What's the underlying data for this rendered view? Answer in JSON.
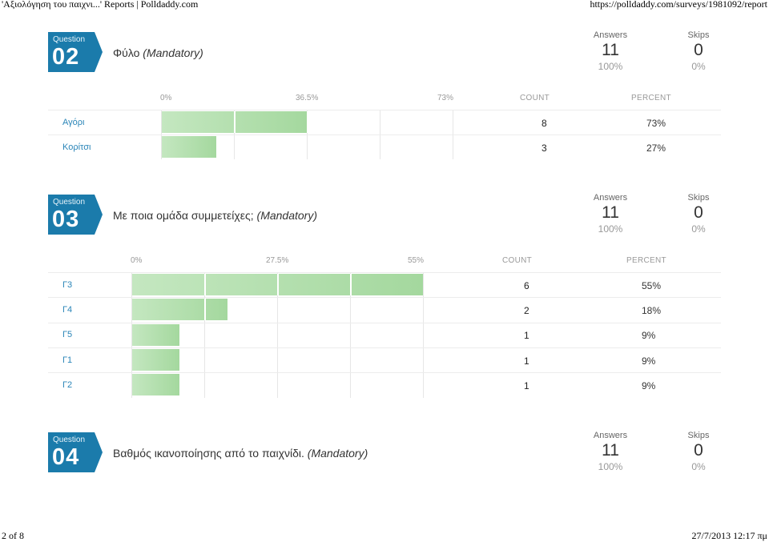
{
  "print_header": {
    "title": "'Αξιολόγηση του παιχνι...' Reports | Polldaddy.com",
    "url": "https://polldaddy.com/surveys/1981092/report"
  },
  "print_footer": {
    "page": "2 of 8",
    "datetime": "27/7/2013 12:17 πμ"
  },
  "questions": [
    {
      "badge_word": "Question",
      "number": "02",
      "title": "Φύλο",
      "mandatory": "(Mandatory)",
      "answers_label": "Answers",
      "answers": "11",
      "answers_pct": "100%",
      "skips_label": "Skips",
      "skips": "0",
      "skips_pct": "0%",
      "axis": [
        "0%",
        "36.5%",
        "73%"
      ],
      "count_label": "COUNT",
      "percent_label": "PERCENT",
      "rows": [
        {
          "label": "Αγόρι",
          "count": "8",
          "percent": "73%",
          "value": 73
        },
        {
          "label": "Κορίτσι",
          "count": "3",
          "percent": "27%",
          "value": 27
        }
      ]
    },
    {
      "badge_word": "Question",
      "number": "03",
      "title": "Με ποια ομάδα συμμετείχες;",
      "mandatory": "(Mandatory)",
      "answers_label": "Answers",
      "answers": "11",
      "answers_pct": "100%",
      "skips_label": "Skips",
      "skips": "0",
      "skips_pct": "0%",
      "axis": [
        "0%",
        "27.5%",
        "55%"
      ],
      "count_label": "COUNT",
      "percent_label": "PERCENT",
      "rows": [
        {
          "label": "Γ3",
          "count": "6",
          "percent": "55%",
          "value": 55
        },
        {
          "label": "Γ4",
          "count": "2",
          "percent": "18%",
          "value": 18
        },
        {
          "label": "Γ5",
          "count": "1",
          "percent": "9%",
          "value": 9
        },
        {
          "label": "Γ1",
          "count": "1",
          "percent": "9%",
          "value": 9
        },
        {
          "label": "Γ2",
          "count": "1",
          "percent": "9%",
          "value": 9
        }
      ]
    },
    {
      "badge_word": "Question",
      "number": "04",
      "title": "Βαθμός ικανοποίησης από το παιχνίδι.",
      "mandatory": "(Mandatory)",
      "answers_label": "Answers",
      "answers": "11",
      "answers_pct": "100%",
      "skips_label": "Skips",
      "skips": "0",
      "skips_pct": "0%"
    }
  ],
  "colors": {
    "badge": "#1b7bab",
    "bar_light": "#c4e7c0",
    "bar_dark": "#a4d89e",
    "link": "#2a85b8"
  }
}
